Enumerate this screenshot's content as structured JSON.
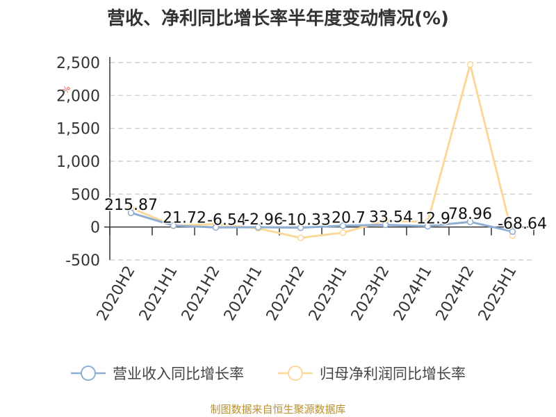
{
  "title": "营收、净利同比增长率半年度变动情况(%)",
  "watermark": "%",
  "source": "制图数据来自恒生聚源数据库",
  "chart_data": {
    "type": "line",
    "title": "营收、净利同比增长率半年度变动情况(%)",
    "categories": [
      "2020H2",
      "2021H1",
      "2021H2",
      "2022H1",
      "2022H2",
      "2023H1",
      "2023H2",
      "2024H1",
      "2024H2",
      "2025H1"
    ],
    "yticks": [
      "2,500",
      "2,000",
      "1,500",
      "1,000",
      "500",
      "0",
      "-500"
    ],
    "ylim": [
      -500,
      2500
    ],
    "grid": true,
    "legend_position": "bottom",
    "series": [
      {
        "name": "营业收入同比增长率",
        "color": "#8eadd2",
        "values": [
          215.87,
          21.72,
          -6.54,
          -2.96,
          -10.33,
          20.7,
          33.54,
          12.9,
          78.96,
          -68.64
        ],
        "labels": [
          "215.87",
          "21.72",
          "-6.54",
          "-2.96",
          "-10.33",
          "20.7",
          "33.54",
          "12.9",
          "78.96",
          "-68.64"
        ]
      },
      {
        "name": "归母净利润同比增长率",
        "color": "#fbd899",
        "values": [
          290,
          20,
          45,
          -20,
          -165,
          -85,
          95,
          80,
          2470,
          -130
        ]
      }
    ]
  }
}
